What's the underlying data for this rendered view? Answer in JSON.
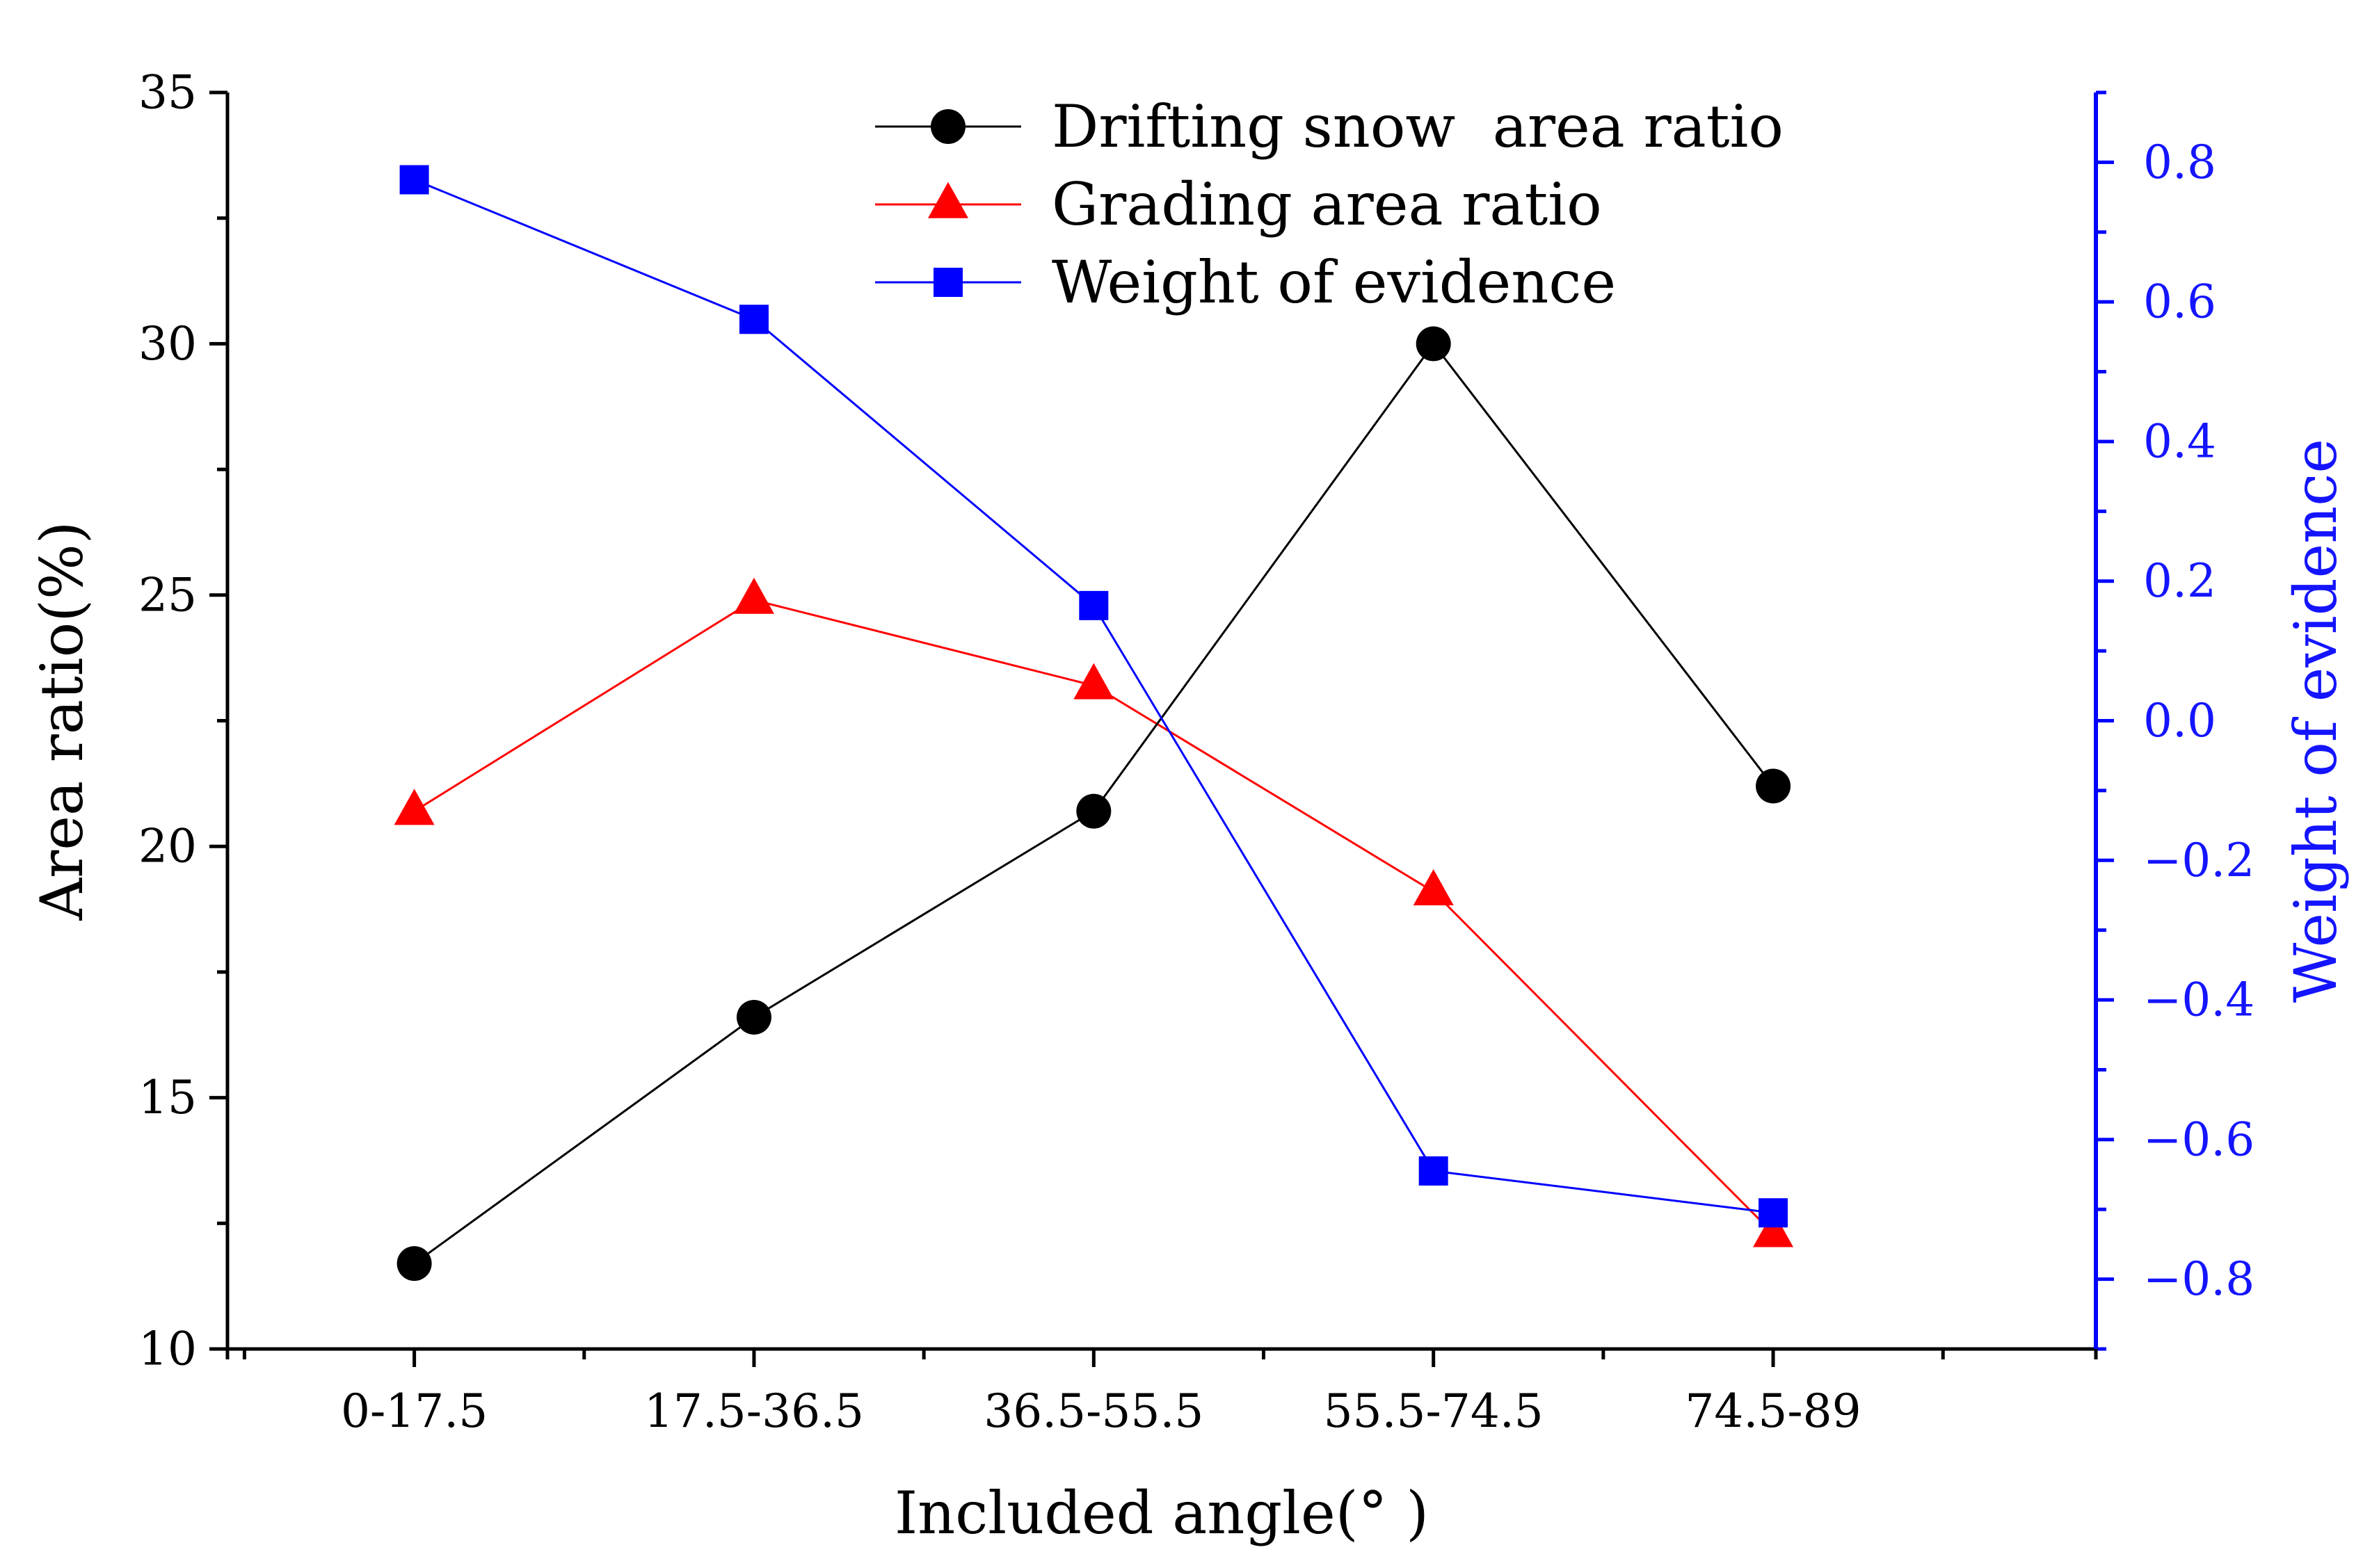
{
  "chart_data": {
    "type": "line",
    "title": "",
    "categories": [
      "0-17.5",
      "17.5-36.5",
      "36.5-55.5",
      "55.5-74.5",
      "74.5-89"
    ],
    "xlabel": "Included angle(° )",
    "ylabel": "Area ratio(%)",
    "ylabel_right": "Weight of evidence",
    "ylim": [
      10,
      35
    ],
    "ylim_right": [
      -0.9,
      0.9
    ],
    "yticks": [
      "10",
      "15",
      "20",
      "25",
      "30",
      "35"
    ],
    "yticks_right": [
      "0.8",
      "0.6",
      "0.4",
      "0.2",
      "0.0",
      "−0.2",
      "−0.4",
      "−0.6",
      "−0.8"
    ],
    "legend_position": "top-center",
    "grid": false,
    "series": [
      {
        "name": "Drifting snow  area ratio",
        "axis": "left",
        "marker": "circle",
        "color": "#000000",
        "values": [
          11.7,
          16.6,
          20.7,
          30.0,
          21.2
        ]
      },
      {
        "name": "Grading area ratio",
        "axis": "left",
        "marker": "triangle",
        "color": "#ff0000",
        "values": [
          20.7,
          24.9,
          23.2,
          19.1,
          12.3
        ]
      },
      {
        "name": "Weight of evidence",
        "axis": "right",
        "marker": "square",
        "color": "#0000ff",
        "values": [
          0.775,
          0.575,
          0.165,
          -0.645,
          -0.705
        ]
      }
    ]
  }
}
